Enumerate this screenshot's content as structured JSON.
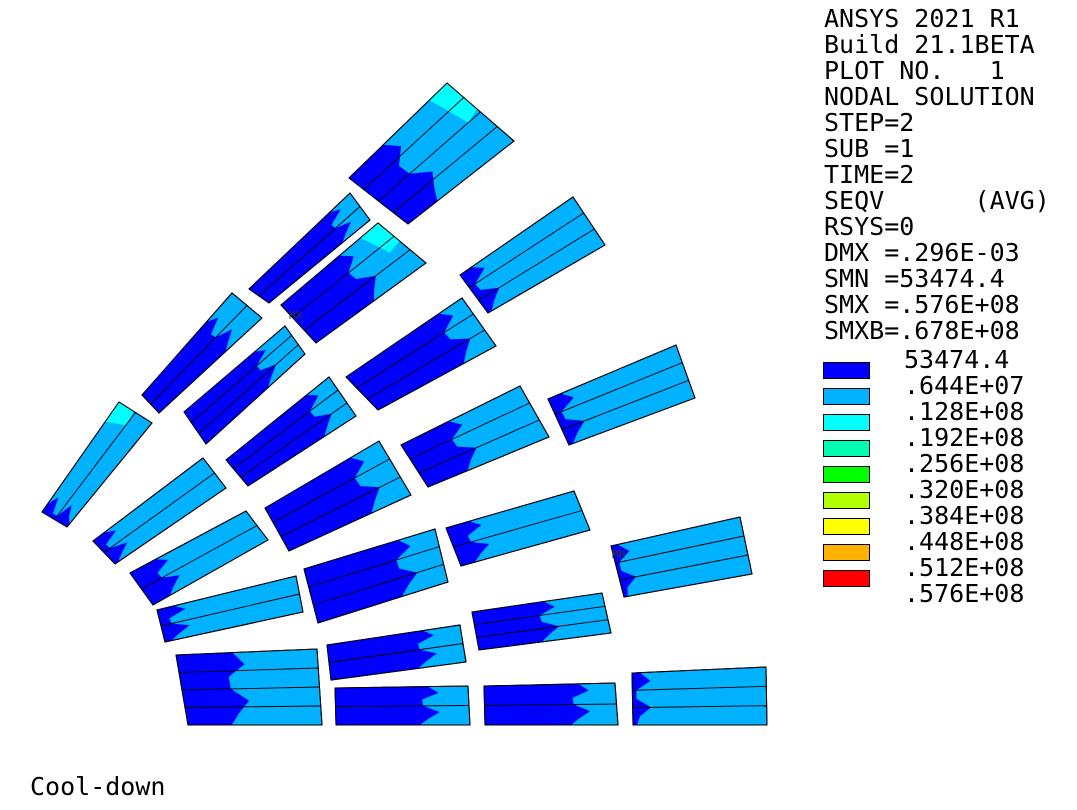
{
  "header": {
    "lines": [
      "ANSYS 2021 R1",
      "Build 21.1BETA",
      "PLOT NO.   1",
      "NODAL SOLUTION",
      "STEP=2",
      "SUB =1",
      "TIME=2",
      "SEQV      (AVG)",
      "RSYS=0",
      "DMX =.296E-03",
      "SMN =53474.4",
      "SMX =.576E+08",
      "SMXB=.678E+08"
    ]
  },
  "legend": {
    "first_label": "53474.4",
    "rows": [
      {
        "color": "#0000ff",
        "label": ".644E+07"
      },
      {
        "color": "#00b2ff",
        "label": ".128E+08"
      },
      {
        "color": "#00ffff",
        "label": ".192E+08"
      },
      {
        "color": "#00ffb2",
        "label": ".256E+08"
      },
      {
        "color": "#00ff00",
        "label": ".320E+08"
      },
      {
        "color": "#b2ff00",
        "label": ".384E+08"
      },
      {
        "color": "#ffff00",
        "label": ".448E+08"
      },
      {
        "color": "#ffb200",
        "label": ".512E+08"
      },
      {
        "color": "#ff0000",
        "label": ".576E+08"
      }
    ]
  },
  "markers": {
    "max": "MX",
    "min": "MN"
  },
  "footer": "Cool-down",
  "colors": {
    "band_light_blue": "#00b2ff",
    "band_dark_blue": "#0000ff",
    "band_cyan": "#00ffff"
  }
}
